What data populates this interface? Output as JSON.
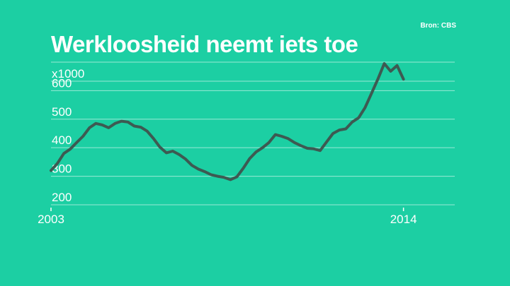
{
  "header": {
    "source": "Bron: CBS",
    "title": "Werkloosheid neemt iets toe"
  },
  "colors": {
    "background": "#1ccfa3",
    "line": "#3d5a52",
    "grid": "#ffffff",
    "text": "#ffffff"
  },
  "chart_data": {
    "type": "line",
    "title": "Werkloosheid neemt iets toe",
    "unit_label": "x1000",
    "xlabel": "",
    "ylabel": "",
    "xlim": [
      2003.0,
      2015.6
    ],
    "ylim": [
      190,
      700
    ],
    "y_ticks": [
      200,
      300,
      400,
      500,
      600
    ],
    "y_tick_labels": [
      "200",
      "300",
      "400",
      "500",
      "600"
    ],
    "x_ticks": [
      2003,
      2014
    ],
    "x_tick_labels": [
      "2003",
      "2014"
    ],
    "grid": true,
    "legend": "none",
    "series": [
      {
        "x": [
          2003.0,
          2003.2,
          2003.4,
          2003.6,
          2003.8,
          2004.0,
          2004.2,
          2004.4,
          2004.6,
          2004.8,
          2005.0,
          2005.2,
          2005.4,
          2005.6,
          2005.8,
          2006.0,
          2006.2,
          2006.4,
          2006.6,
          2006.8,
          2007.0,
          2007.2,
          2007.4,
          2007.6,
          2007.8,
          2008.0,
          2008.2,
          2008.4,
          2008.6,
          2008.8,
          2009.0,
          2009.2,
          2009.4,
          2009.6,
          2009.8,
          2010.0,
          2010.2,
          2010.4,
          2010.6,
          2010.8,
          2011.0,
          2011.2,
          2011.4,
          2011.6,
          2011.8,
          2012.0,
          2012.2,
          2012.4,
          2012.6,
          2012.8,
          2013.0,
          2013.2,
          2013.4,
          2013.6,
          2013.8,
          2014.0
        ],
        "values": [
          320,
          345,
          380,
          395,
          418,
          440,
          470,
          485,
          480,
          470,
          485,
          493,
          490,
          476,
          472,
          458,
          432,
          402,
          382,
          388,
          376,
          360,
          338,
          325,
          316,
          305,
          300,
          296,
          288,
          298,
          328,
          362,
          385,
          400,
          418,
          446,
          440,
          432,
          418,
          407,
          398,
          396,
          390,
          420,
          450,
          462,
          466,
          490,
          505,
          540,
          590,
          640,
          695,
          668,
          688,
          640
        ]
      }
    ]
  }
}
